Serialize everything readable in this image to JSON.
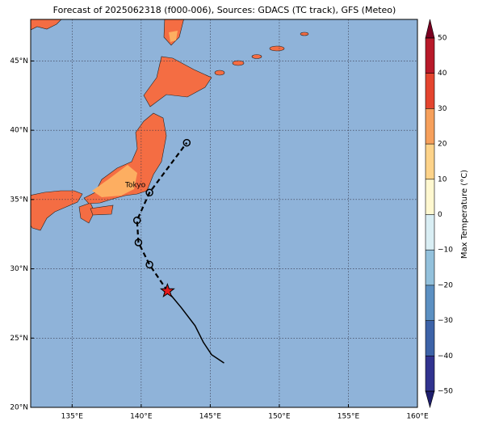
{
  "map": {
    "title": "Forecast of 2025062318 (f000-006), Sources: GDACS (TC track), GFS (Meteo)",
    "xlim": [
      132,
      160
    ],
    "ylim": [
      20,
      48
    ],
    "xticks": [
      {
        "value": 135,
        "label": "135°E"
      },
      {
        "value": 140,
        "label": "140°E"
      },
      {
        "value": 145,
        "label": "145°E"
      },
      {
        "value": 150,
        "label": "150°E"
      },
      {
        "value": 155,
        "label": "155°E"
      },
      {
        "value": 160,
        "label": "160°E"
      }
    ],
    "yticks": [
      {
        "value": 20,
        "label": "20°N"
      },
      {
        "value": 25,
        "label": "25°N"
      },
      {
        "value": 30,
        "label": "30°N"
      },
      {
        "value": 35,
        "label": "35°N"
      },
      {
        "value": 40,
        "label": "40°N"
      },
      {
        "value": 45,
        "label": "45°N"
      }
    ],
    "grid": true,
    "city": "Tokyo",
    "track": {
      "past": {
        "lon": [
          146.0,
          145.1,
          144.5,
          143.9,
          142.9,
          141.9
        ],
        "lat": [
          23.2,
          23.8,
          24.7,
          25.9,
          27.2,
          28.4
        ],
        "color": "#000000"
      },
      "forecast": {
        "lon": [
          141.9,
          140.6,
          139.8,
          139.7,
          140.6,
          143.3
        ],
        "lat": [
          28.4,
          30.3,
          31.9,
          33.5,
          35.5,
          39.1
        ],
        "color": "#000000"
      },
      "current_color": "#e41a1c"
    },
    "colorbar": {
      "label": "Max Temperature (°C)",
      "lim": [
        -50,
        50
      ],
      "ticks": [
        {
          "value": -50,
          "label": "−50"
        },
        {
          "value": -40,
          "label": "−40"
        },
        {
          "value": -30,
          "label": "−30"
        },
        {
          "value": -20,
          "label": "−20"
        },
        {
          "value": -10,
          "label": "−10"
        },
        0,
        10,
        20,
        30,
        40,
        50
      ],
      "colors": [
        "#1f1f6e",
        "#31338f",
        "#3d63a8",
        "#5c90c2",
        "#93c1dc",
        "#d9eef4",
        "#fff8d0",
        "#fdd38a",
        "#f6a05c",
        "#e4452f",
        "#b81a2a",
        "#7a0021"
      ]
    }
  }
}
